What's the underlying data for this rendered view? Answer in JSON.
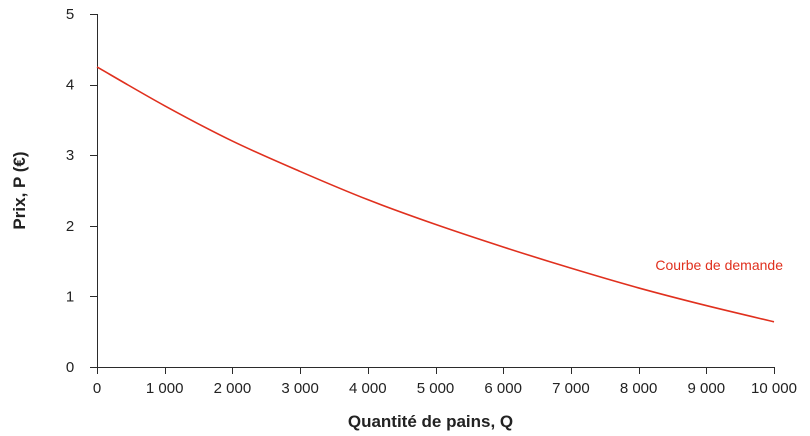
{
  "chart_data": {
    "type": "line",
    "title": "",
    "xlabel": "Quantité de pains, Q",
    "ylabel": "Prix, P (€)",
    "xlim": [
      0,
      10000
    ],
    "ylim": [
      0,
      5
    ],
    "x_ticks": [
      0,
      1000,
      2000,
      3000,
      4000,
      5000,
      6000,
      7000,
      8000,
      9000,
      10000
    ],
    "x_tick_labels": [
      "0",
      "1 000",
      "2 000",
      "3 000",
      "4 000",
      "5 000",
      "6 000",
      "7 000",
      "8 000",
      "9 000",
      "10 000"
    ],
    "y_ticks": [
      0,
      1,
      2,
      3,
      4,
      5
    ],
    "y_tick_labels": [
      "0",
      "1",
      "2",
      "3",
      "4",
      "5"
    ],
    "grid": false,
    "legend": "none",
    "series": [
      {
        "name": "Courbe de demande",
        "color": "#e0301e",
        "x": [
          0,
          1000,
          2000,
          3000,
          4000,
          5000,
          6000,
          7000,
          8000,
          9000,
          10000
        ],
        "y": [
          4.25,
          3.7,
          3.2,
          2.77,
          2.37,
          2.02,
          1.7,
          1.4,
          1.12,
          0.87,
          0.64
        ]
      }
    ]
  }
}
